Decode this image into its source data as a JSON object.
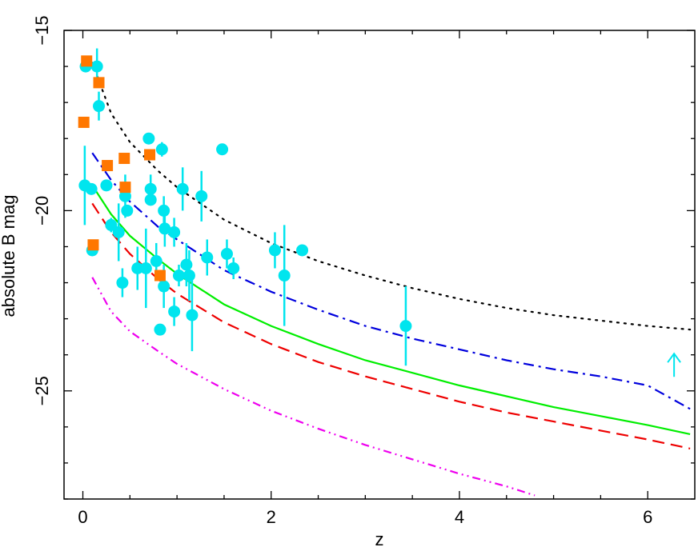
{
  "chart_data": {
    "type": "scatter",
    "xlabel": "z",
    "ylabel": "absolute B mag",
    "xlim": [
      -0.2,
      6.5
    ],
    "ylim": [
      -15,
      -28
    ],
    "y_inverted": true,
    "grid": false,
    "legend": "none",
    "x_ticks": [
      {
        "value": 0,
        "label": "0"
      },
      {
        "value": 2,
        "label": "2"
      },
      {
        "value": 4,
        "label": "4"
      },
      {
        "value": 6,
        "label": "6"
      }
    ],
    "y_ticks": [
      {
        "value": -15,
        "label": "−15"
      },
      {
        "value": -20,
        "label": "−20"
      },
      {
        "value": -25,
        "label": "−25"
      }
    ],
    "colors": {
      "circles": "#00e5ee",
      "squares": "#ff7700",
      "dotted": "#000000",
      "dashdot": "#0000dd",
      "solid": "#00ee00",
      "dashed": "#ee0000",
      "dashdotdot": "#ee00ee"
    },
    "series": [
      {
        "marker": "circle",
        "points": [
          {
            "x": 0.03,
            "y": -16.0,
            "yerr": 0.15
          },
          {
            "x": 0.15,
            "y": -16.0,
            "yerr": 0.5
          },
          {
            "x": 0.17,
            "y": -17.1,
            "yerr": 0.4
          },
          {
            "x": 0.02,
            "y": -19.3,
            "yerr": 1.1
          },
          {
            "x": 0.09,
            "y": -19.4,
            "yerr": 0.1
          },
          {
            "x": 0.1,
            "y": -21.1,
            "yerr": 0.1
          },
          {
            "x": 0.25,
            "y": -19.3,
            "yerr": 0.1
          },
          {
            "x": 0.3,
            "y": -20.4,
            "yerr": 0.2
          },
          {
            "x": 0.38,
            "y": -20.6,
            "yerr": 0.8
          },
          {
            "x": 0.42,
            "y": -22.0,
            "yerr": 0.4
          },
          {
            "x": 0.45,
            "y": -19.6,
            "yerr": 0.6
          },
          {
            "x": 0.47,
            "y": -20.0,
            "yerr": 0.1
          },
          {
            "x": 0.58,
            "y": -21.6,
            "yerr": 0.6
          },
          {
            "x": 0.67,
            "y": -21.6,
            "yerr": 1.1
          },
          {
            "x": 0.7,
            "y": -18.0,
            "yerr": 0.1
          },
          {
            "x": 0.72,
            "y": -19.4,
            "yerr": 0.4
          },
          {
            "x": 0.72,
            "y": -19.7,
            "yerr": 0.1
          },
          {
            "x": 0.78,
            "y": -21.4,
            "yerr": 0.5
          },
          {
            "x": 0.82,
            "y": -23.3,
            "yerr": 0.1
          },
          {
            "x": 0.84,
            "y": -18.3,
            "yerr": 0.2
          },
          {
            "x": 0.86,
            "y": -20.0,
            "yerr": 0.4
          },
          {
            "x": 0.87,
            "y": -20.5,
            "yerr": 0.5
          },
          {
            "x": 0.86,
            "y": -22.1,
            "yerr": 0.6
          },
          {
            "x": 0.97,
            "y": -20.6,
            "yerr": 0.4
          },
          {
            "x": 0.97,
            "y": -22.8,
            "yerr": 0.4
          },
          {
            "x": 1.02,
            "y": -21.8,
            "yerr": 0.3
          },
          {
            "x": 1.06,
            "y": -19.4,
            "yerr": 0.6
          },
          {
            "x": 1.1,
            "y": -21.5,
            "yerr": 0.6
          },
          {
            "x": 1.13,
            "y": -21.8,
            "yerr": 0.7
          },
          {
            "x": 1.16,
            "y": -22.9,
            "yerr": 1.0
          },
          {
            "x": 1.26,
            "y": -19.6,
            "yerr": 0.7
          },
          {
            "x": 1.32,
            "y": -21.3,
            "yerr": 0.5
          },
          {
            "x": 1.48,
            "y": -18.3,
            "yerr": 0.1
          },
          {
            "x": 1.53,
            "y": -21.2,
            "yerr": 0.4
          },
          {
            "x": 1.6,
            "y": -21.6,
            "yerr": 0.3
          },
          {
            "x": 2.04,
            "y": -21.1,
            "yerr": 0.5
          },
          {
            "x": 2.14,
            "y": -21.8,
            "yerr": 1.4
          },
          {
            "x": 2.33,
            "y": -21.1,
            "yerr": 0.1
          },
          {
            "x": 3.43,
            "y": -23.2,
            "yerr": 1.1
          }
        ]
      },
      {
        "marker": "square",
        "points": [
          {
            "x": 0.04,
            "y": -15.85
          },
          {
            "x": 0.17,
            "y": -16.45
          },
          {
            "x": 0.01,
            "y": -17.55
          },
          {
            "x": 0.26,
            "y": -18.75
          },
          {
            "x": 0.44,
            "y": -18.55
          },
          {
            "x": 0.71,
            "y": -18.45
          },
          {
            "x": 0.45,
            "y": -19.35
          },
          {
            "x": 0.11,
            "y": -20.95
          },
          {
            "x": 0.82,
            "y": -21.8
          }
        ]
      }
    ],
    "limits": [
      {
        "x": 6.28,
        "y": -24.3,
        "direction": "up"
      }
    ],
    "curves": [
      {
        "style": "dotted",
        "x": [
          0.1,
          0.3,
          0.5,
          0.8,
          1.0,
          1.5,
          2.0,
          2.5,
          3.0,
          3.5,
          4.0,
          4.5,
          5.0,
          5.5,
          6.0,
          6.45
        ],
        "y": [
          -15.9,
          -17.3,
          -18.1,
          -18.9,
          -19.35,
          -20.25,
          -20.9,
          -21.4,
          -21.8,
          -22.15,
          -22.45,
          -22.7,
          -22.9,
          -23.05,
          -23.2,
          -23.3
        ]
      },
      {
        "style": "dashdot",
        "x": [
          0.1,
          0.3,
          0.5,
          0.8,
          1.0,
          1.5,
          2.0,
          2.5,
          3.0,
          3.5,
          4.0,
          4.5,
          5.0,
          5.5,
          6.0,
          6.45
        ],
        "y": [
          -18.4,
          -19.15,
          -19.75,
          -20.45,
          -20.8,
          -21.65,
          -22.25,
          -22.75,
          -23.2,
          -23.55,
          -23.85,
          -24.15,
          -24.4,
          -24.6,
          -24.85,
          -25.5
        ]
      },
      {
        "style": "solid",
        "x": [
          0.1,
          0.3,
          0.5,
          0.8,
          1.0,
          1.5,
          2.0,
          2.5,
          3.0,
          3.5,
          4.0,
          4.5,
          5.0,
          5.5,
          6.0,
          6.45
        ],
        "y": [
          -19.3,
          -20.1,
          -20.7,
          -21.35,
          -21.75,
          -22.6,
          -23.2,
          -23.7,
          -24.15,
          -24.5,
          -24.85,
          -25.15,
          -25.45,
          -25.7,
          -25.95,
          -26.2
        ]
      },
      {
        "style": "dashed",
        "x": [
          0.1,
          0.3,
          0.5,
          0.8,
          1.0,
          1.5,
          2.0,
          2.5,
          3.0,
          3.5,
          4.0,
          4.5,
          5.0,
          5.5,
          6.0,
          6.45
        ],
        "y": [
          -19.8,
          -20.6,
          -21.2,
          -21.9,
          -22.3,
          -23.1,
          -23.7,
          -24.2,
          -24.6,
          -24.95,
          -25.3,
          -25.6,
          -25.85,
          -26.1,
          -26.35,
          -26.6
        ]
      },
      {
        "style": "dashdotdot",
        "x": [
          0.1,
          0.3,
          0.5,
          0.8,
          1.0,
          1.5,
          2.0,
          2.5,
          3.0,
          3.5,
          4.0,
          4.5,
          4.8
        ],
        "y": [
          -21.85,
          -22.8,
          -23.35,
          -23.9,
          -24.25,
          -24.95,
          -25.55,
          -26.05,
          -26.5,
          -26.9,
          -27.3,
          -27.65,
          -27.9
        ]
      }
    ]
  }
}
